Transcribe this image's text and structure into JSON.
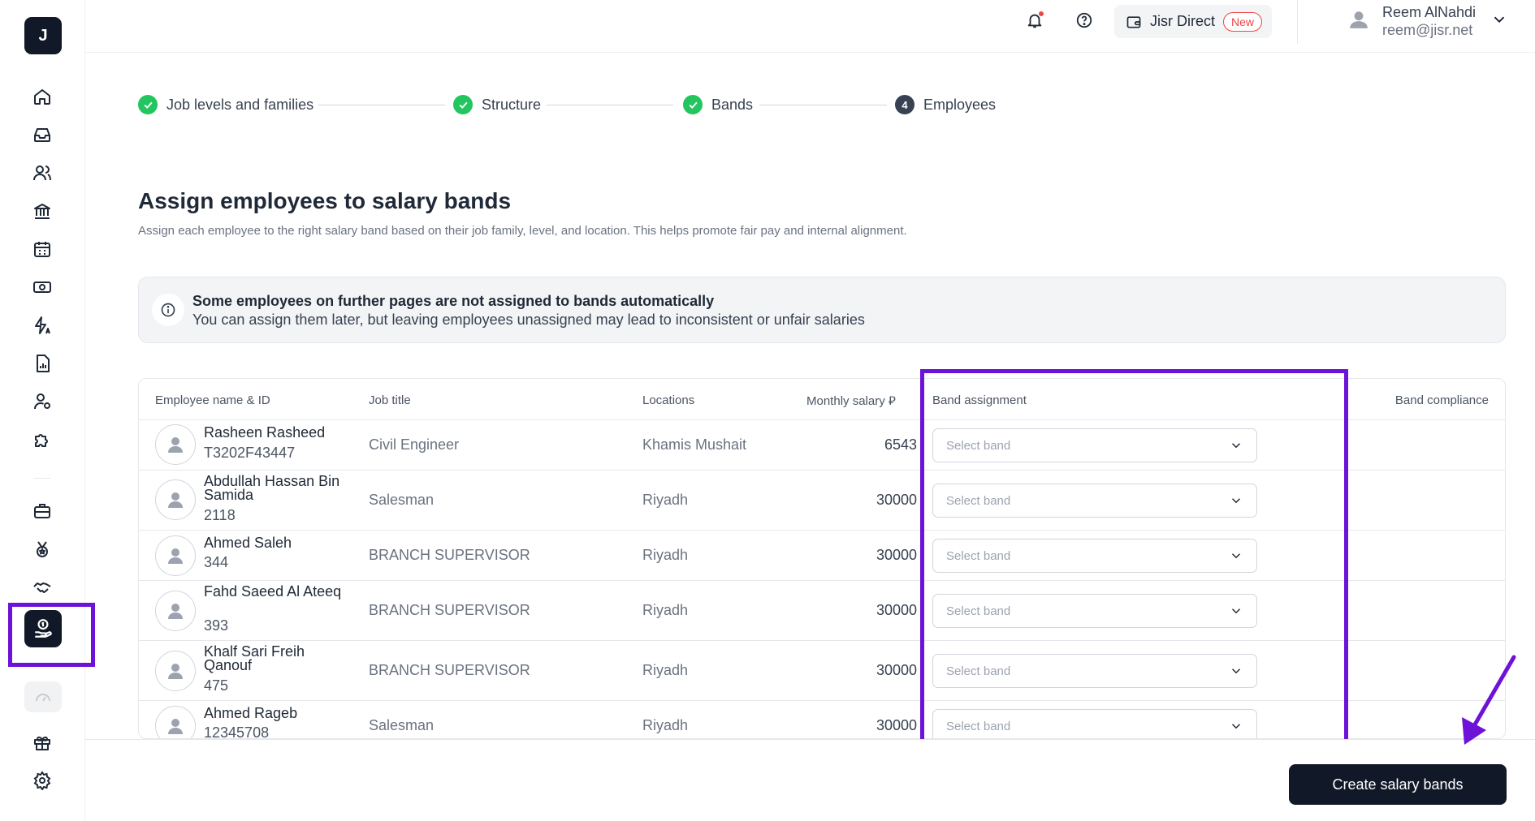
{
  "logo": {
    "letter": "J"
  },
  "sidebar": {
    "items": [
      {
        "icon": "home-icon"
      },
      {
        "icon": "inbox-icon"
      },
      {
        "icon": "people-icon"
      },
      {
        "icon": "bank-icon"
      },
      {
        "icon": "calendar-icon"
      },
      {
        "icon": "money-icon"
      },
      {
        "icon": "automation-icon"
      },
      {
        "icon": "report-icon"
      },
      {
        "icon": "user-settings-icon"
      },
      {
        "icon": "puzzle-icon"
      },
      {
        "icon": "briefcase-icon"
      },
      {
        "icon": "medal-icon"
      },
      {
        "icon": "handshake-icon"
      },
      {
        "icon": "salary-hand-icon",
        "active": true
      },
      {
        "icon": "gauge-icon"
      },
      {
        "icon": "gift-icon"
      },
      {
        "icon": "gear-icon"
      }
    ]
  },
  "header": {
    "jisr_direct": "Jisr Direct",
    "new_badge": "New",
    "user_name": "Reem AlNahdi",
    "user_email": "reem@jisr.net"
  },
  "stepper": {
    "steps": [
      {
        "label": "Job levels and families",
        "status": "done"
      },
      {
        "label": "Structure",
        "status": "done"
      },
      {
        "label": "Bands",
        "status": "done"
      },
      {
        "label": "Employees",
        "status": "current",
        "number": "4"
      }
    ]
  },
  "page": {
    "title": "Assign employees to salary bands",
    "subtitle": "Assign each employee to the right salary band based on their job family, level, and location. This helps promote fair pay and internal alignment."
  },
  "alert": {
    "title": "Some employees on further pages are not assigned to bands automatically",
    "body": "You can assign them later, but leaving employees unassigned may lead to inconsistent or unfair salaries"
  },
  "table": {
    "columns": {
      "name": "Employee name & ID",
      "job": "Job title",
      "location": "Locations",
      "salary": "Monthly salary ⃁",
      "band": "Band assignment",
      "compliance": "Band compliance"
    },
    "rows": [
      {
        "name": "Rasheen Rasheed",
        "id": "T3202F43447",
        "job": "Civil Engineer",
        "location": "Khamis Mushait",
        "salary": "6543",
        "band": "Select band"
      },
      {
        "name": "Abdullah Hassan Bin Samida",
        "id": "2118",
        "job": "Salesman",
        "location": "Riyadh",
        "salary": "30000",
        "band": "Select band"
      },
      {
        "name": "Ahmed Saleh",
        "id": "344",
        "job": "BRANCH SUPERVISOR",
        "location": "Riyadh",
        "salary": "30000",
        "band": "Select band"
      },
      {
        "name": "Fahd Saeed Al Ateeq",
        "id": "393",
        "job": "BRANCH SUPERVISOR",
        "location": "Riyadh",
        "salary": "30000",
        "band": "Select band"
      },
      {
        "name": "Khalf Sari Freih Qanouf",
        "id": "475",
        "job": "BRANCH SUPERVISOR",
        "location": "Riyadh",
        "salary": "30000",
        "band": "Select band"
      },
      {
        "name": "Ahmed Rageb",
        "id": "12345708",
        "job": "Salesman",
        "location": "Riyadh",
        "salary": "30000",
        "band": "Select band"
      }
    ]
  },
  "footer": {
    "create_label": "Create salary bands"
  },
  "colors": {
    "highlight": "#6d12d8",
    "primary": "#111827",
    "success": "#22c55e",
    "danger": "#ef4444"
  }
}
